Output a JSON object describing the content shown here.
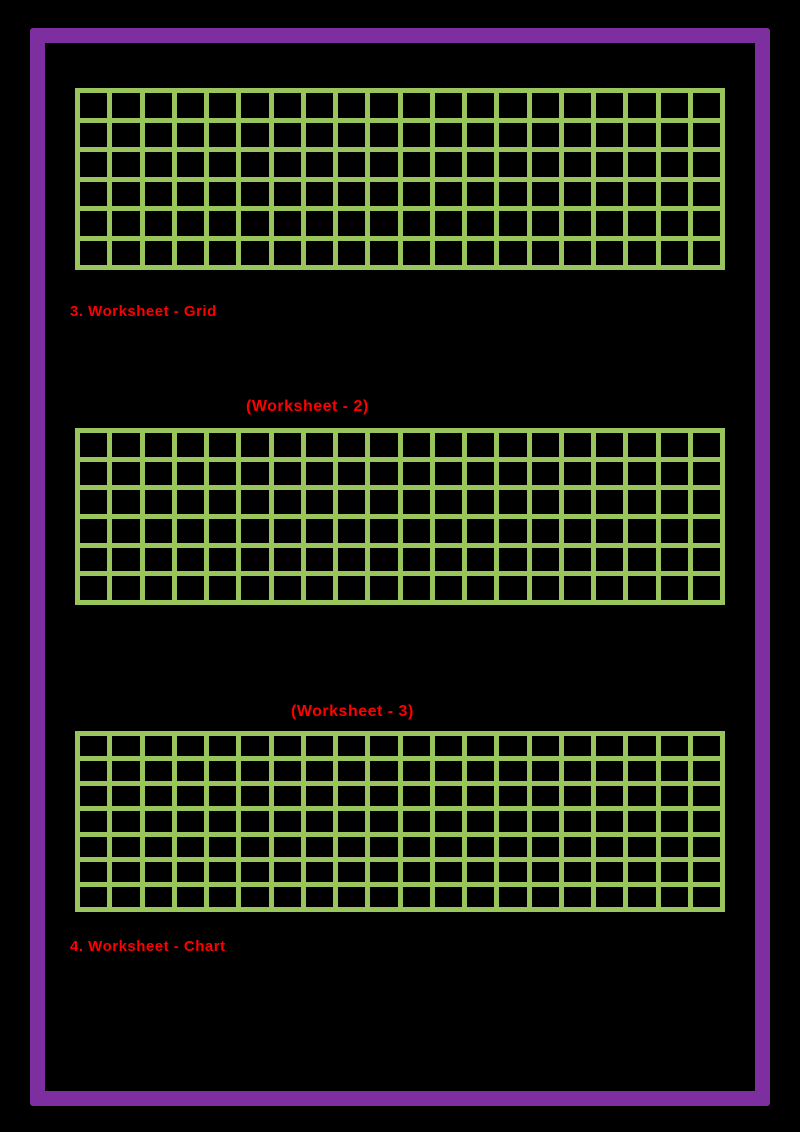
{
  "page": {
    "background": "#000000",
    "frame_color": "#7d2f9f"
  },
  "colors": {
    "grid_green": "#9ac45c",
    "label_red": "#ff0000"
  },
  "labels": {
    "caption_3": "3. Worksheet - Grid",
    "title_2": "(Worksheet - 2)",
    "title_3": "(Worksheet - 3)",
    "caption_4": "4. Worksheet - Chart"
  },
  "grids": [
    {
      "name": "grid-1",
      "rows": 6,
      "cols": 20
    },
    {
      "name": "grid-2",
      "rows": 6,
      "cols": 20
    },
    {
      "name": "grid-3",
      "rows": 7,
      "cols": 20
    }
  ]
}
